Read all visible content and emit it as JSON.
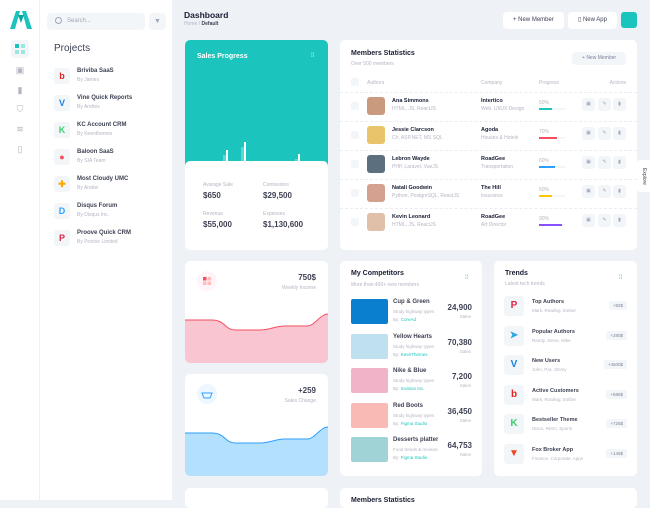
{
  "header": {
    "title": "Dashboard",
    "breadcrumb": [
      "Home",
      "Default"
    ],
    "new_member": "New Member",
    "new_app": "New App"
  },
  "search": {
    "placeholder": "Search..."
  },
  "projects": {
    "title": "Projects",
    "items": [
      {
        "name": "Briviba SaaS",
        "by": "By James",
        "icon": "b",
        "color": "#e02424"
      },
      {
        "name": "Vine Quick Reports",
        "by": "By Andres",
        "icon": "V",
        "color": "#1a82e2"
      },
      {
        "name": "KC Account CRM",
        "by": "By Keenthemes",
        "icon": "K",
        "color": "#3cce6f"
      },
      {
        "name": "Baloon SaaS",
        "by": "By SIA Team",
        "icon": "●",
        "color": "#f64e60"
      },
      {
        "name": "Most Cloudy UMC",
        "by": "By Andrei",
        "icon": "✚",
        "color": "#ffa800"
      },
      {
        "name": "Disqus Forum",
        "by": "By Disqus Inc.",
        "icon": "D",
        "color": "#2e9fff"
      },
      {
        "name": "Proove Quick CRM",
        "by": "By Proove Limited",
        "icon": "P",
        "color": "#e02444"
      }
    ]
  },
  "sales_progress": {
    "title": "Sales Progress",
    "bars": [
      4,
      7,
      8,
      5.5,
      4.5,
      6.5,
      5.5
    ],
    "stats": [
      {
        "label": "Avarage Sale",
        "value": "$650"
      },
      {
        "label": "Comissions",
        "value": "$29,500"
      },
      {
        "label": "Revenue",
        "value": "$55,000"
      },
      {
        "label": "Expenses",
        "value": "$1,130,600"
      }
    ]
  },
  "members": {
    "title": "Members Statistics",
    "subtitle": "Over 500 members",
    "new_member": "New Member",
    "columns": [
      "Authors",
      "Company",
      "Progress",
      "Actions"
    ],
    "rows": [
      {
        "name": "Ana Simmons",
        "skills": "HTML, JS, ReactJS",
        "company": "Intertico",
        "sector": "Web, UI/UX Design",
        "progress": "50%",
        "value": 50,
        "color": "#1bc5bd"
      },
      {
        "name": "Jessie Clarcson",
        "skills": "C#, ASP.NET, MS SQL",
        "company": "Agoda",
        "sector": "Houses & Hotels",
        "progress": "70%",
        "value": 70,
        "color": "#f64e60"
      },
      {
        "name": "Lebron Wayde",
        "skills": "PHP, Laravel, VueJS",
        "company": "RoadGee",
        "sector": "Transportation",
        "progress": "60%",
        "value": 60,
        "color": "#2e9fff"
      },
      {
        "name": "Natali Goodwin",
        "skills": "Python, PostgreSQL, ReactJS",
        "company": "The Hill",
        "sector": "Insurance",
        "progress": "50%",
        "value": 50,
        "color": "#ffc700"
      },
      {
        "name": "Kevin Leonard",
        "skills": "HTML, JS, ReactJS",
        "company": "RoadGee",
        "sector": "Art Director",
        "progress": "90%",
        "value": 90,
        "color": "#8950fc"
      }
    ]
  },
  "weekly": {
    "value": "750$",
    "label": "Weekly Income"
  },
  "sales_change": {
    "value": "+259",
    "label": "Sales Change"
  },
  "competitors": {
    "title": "My Competitors",
    "subtitle": "More than 400+ new members",
    "items": [
      {
        "name": "Cup & Green",
        "desc": "Study highway types",
        "by_label": "By:",
        "by": "CoreAd",
        "value": "24,900",
        "unit": "Sales",
        "color": "#0a7fd0"
      },
      {
        "name": "Yellow Hearts",
        "desc": "Study highway types",
        "by_label": "By:",
        "by": "KeenThemes",
        "value": "70,380",
        "unit": "Sales",
        "color": "#bfe0ee"
      },
      {
        "name": "Nike & Blue",
        "desc": "Study highway types",
        "by_label": "By:",
        "by": "Invision Inc.",
        "value": "7,200",
        "unit": "Sales",
        "color": "#f0b3c8"
      },
      {
        "name": "Red Boots",
        "desc": "Study highway types",
        "by_label": "By:",
        "by": "Figma Studio",
        "value": "36,450",
        "unit": "Sales",
        "color": "#f9b9b4"
      },
      {
        "name": "Desserts platter",
        "desc": "Food trends & reviews",
        "by_label": "By:",
        "by": "Figma Studio",
        "value": "64,753",
        "unit": "Sales",
        "color": "#9fd3d6"
      }
    ]
  },
  "trends": {
    "title": "Trends",
    "subtitle": "Latest tech trends",
    "items": [
      {
        "name": "Top Authors",
        "people": "Mark, Rowling, Esther",
        "badge": "+82$",
        "icon": "P",
        "color": "#e02444"
      },
      {
        "name": "Popular Authors",
        "people": "Randy, Steve, Mike",
        "badge": "+280$",
        "icon": "➤",
        "color": "#2ea7e0"
      },
      {
        "name": "New Users",
        "people": "John, Pat, Jimmy",
        "badge": "+4500$",
        "icon": "V",
        "color": "#1a82e2"
      },
      {
        "name": "Active Customers",
        "people": "Mark, Rowling, Esther",
        "badge": "+686$",
        "icon": "b",
        "color": "#e02424"
      },
      {
        "name": "Bestseller Theme",
        "people": "Disco, Retro, Sports",
        "badge": "+726$",
        "icon": "K",
        "color": "#3cce6f"
      },
      {
        "name": "Fox Broker App",
        "people": "Finance, Corporate, Apps",
        "badge": "+145$",
        "icon": "▼",
        "color": "#f0431e"
      }
    ]
  },
  "bottom": {
    "members_title": "Members Statistics"
  },
  "explore": "Explore"
}
